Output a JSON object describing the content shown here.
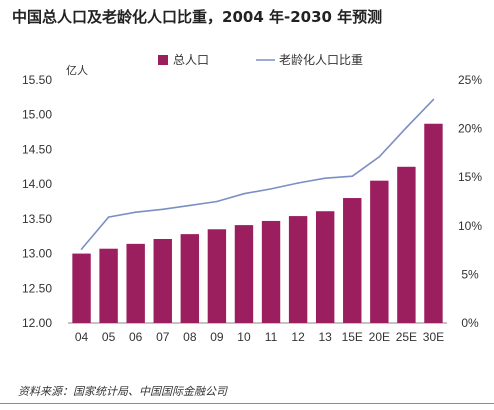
{
  "title": "中国总人口及老龄化人口比重，2004 年-2030 年预测",
  "source": "资料来源：国家统计局、中国国际金融公司",
  "chart_data": {
    "type": "bar",
    "categories": [
      "04",
      "05",
      "06",
      "07",
      "08",
      "09",
      "10",
      "11",
      "12",
      "13",
      "15E",
      "20E",
      "25E",
      "30E"
    ],
    "series": [
      {
        "name": "总人口",
        "type": "bar",
        "axis": "left",
        "color": "#9b1f5e",
        "values": [
          13.0,
          13.07,
          13.14,
          13.21,
          13.28,
          13.35,
          13.41,
          13.47,
          13.54,
          13.61,
          13.8,
          14.05,
          14.25,
          14.87
        ]
      },
      {
        "name": "老龄化人口比重",
        "type": "line",
        "axis": "right",
        "color": "#7b8fc4",
        "values": [
          7.6,
          10.9,
          11.4,
          11.7,
          12.1,
          12.5,
          13.3,
          13.8,
          14.4,
          14.9,
          15.1,
          17.1,
          20.1,
          23.0
        ]
      }
    ],
    "left_axis": {
      "unit_label": "亿人",
      "ylim": [
        12.0,
        15.5
      ],
      "ticks": [
        "12.00",
        "12.50",
        "13.00",
        "13.50",
        "14.00",
        "14.50",
        "15.00",
        "15.50"
      ]
    },
    "right_axis": {
      "ylim": [
        0,
        25
      ],
      "ticks": [
        "0%",
        "5%",
        "10%",
        "15%",
        "20%",
        "25%"
      ]
    },
    "grid": false,
    "legend_position": "top"
  }
}
